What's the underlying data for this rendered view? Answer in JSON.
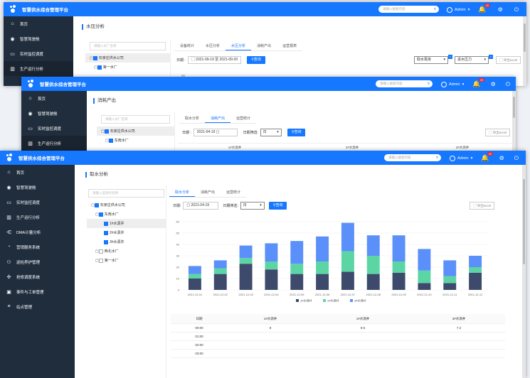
{
  "app_title": "智慧供水综合管理平台",
  "header": {
    "search_placeholder": "请输入搜索内容",
    "user": "Admin",
    "badge": "20"
  },
  "win1": {
    "page_title": "水压分析",
    "tree_placeholder": "请输入水厂名称",
    "tree": [
      "石家庄供水公司",
      "第一水厂"
    ],
    "tabs": [
      "设备统计",
      "水压分析",
      "水压分析",
      "消耗产出",
      "运营报表"
    ],
    "date_label": "日期 :",
    "date_from": "2021-09-19",
    "date_to_label": "至",
    "date_to": "2021-09-20",
    "query": "查询",
    "sel1": "取水泵房",
    "sel2": "进水压力",
    "export": "导出excel",
    "partial_value": "85"
  },
  "win2": {
    "page_title": "消耗产出",
    "tree_placeholder": "请输入水厂名称",
    "tree": [
      "石家庄供水公司",
      "东南水厂"
    ],
    "tabs": [
      "取水分析",
      "消耗产出",
      "运营统计"
    ],
    "date_label": "日期 :",
    "date": "2021-04-19",
    "interval_label": "日期筛选",
    "interval": "日",
    "query": "查询",
    "export": "导出excel",
    "cols": [
      "1#水源井",
      "2#水源井",
      "3#水源井"
    ]
  },
  "win3": {
    "page_title": "取水分析",
    "tree_placeholder": "请输入监测点名称",
    "tree": [
      "石家庄供水公司",
      "东南水厂",
      "1#水源井",
      "2#水源井",
      "3#水源井",
      "西北水厂",
      "第一水厂"
    ],
    "tabs": [
      "取水分析",
      "消耗产出",
      "运营统计"
    ],
    "date_label": "日期:",
    "date": "2021-04-19",
    "interval_label": "日期筛选:",
    "interval": "日",
    "query": "查询",
    "export": "导出excel",
    "table_header": [
      "日期",
      "1#水源井",
      "1#水源井",
      "3#水源井"
    ],
    "table_rows": [
      [
        "00:00",
        "8",
        "8.5",
        "7.2"
      ],
      [
        "01:00",
        "",
        "",
        ""
      ],
      [
        "02:00",
        "",
        "",
        ""
      ],
      [
        "03:00",
        "",
        "",
        ""
      ]
    ]
  },
  "sidebar": [
    "首页",
    "智慧驾驶舱",
    "实时监控调度",
    "生产运行分析",
    "DMA计量分析",
    "营销服务系统",
    "巡检养护管理",
    "抢修调度系统",
    "事件与工单管理",
    "站点管理"
  ],
  "sidebar2": [
    "首页",
    "智慧驾驶舱",
    "实时监控调度",
    "生产运行分析"
  ],
  "chart_data": {
    "type": "bar",
    "stacked": true,
    "categories": [
      "2021-12-01",
      "2021-12-02",
      "2021-12-03",
      "2021-12-04",
      "2021-12-05",
      "2021-12-06",
      "2021-12-07",
      "2021-12-08",
      "2021-12-09",
      "2021-12-10",
      "2021-12-11",
      "2021-12-12"
    ],
    "series": [
      {
        "name": "1#水源井",
        "color": "#3d4a6b",
        "values": [
          10,
          14,
          23,
          18,
          14,
          14,
          16,
          14,
          15,
          6,
          6,
          15
        ]
      },
      {
        "name": "2#水源井",
        "color": "#5cd5a5",
        "values": [
          4,
          5,
          5,
          7,
          9,
          11,
          18,
          16,
          10,
          11,
          6,
          5
        ]
      },
      {
        "name": "3#水源井",
        "color": "#5b8ff9",
        "values": [
          7,
          7,
          11,
          16,
          20,
          22,
          25,
          18,
          23,
          19,
          14,
          10
        ]
      }
    ],
    "ylim": [
      0,
      60
    ],
    "yticks": [
      0,
      10,
      20,
      30,
      40,
      50,
      60
    ],
    "legend": "bottom-center",
    "grid": true
  }
}
